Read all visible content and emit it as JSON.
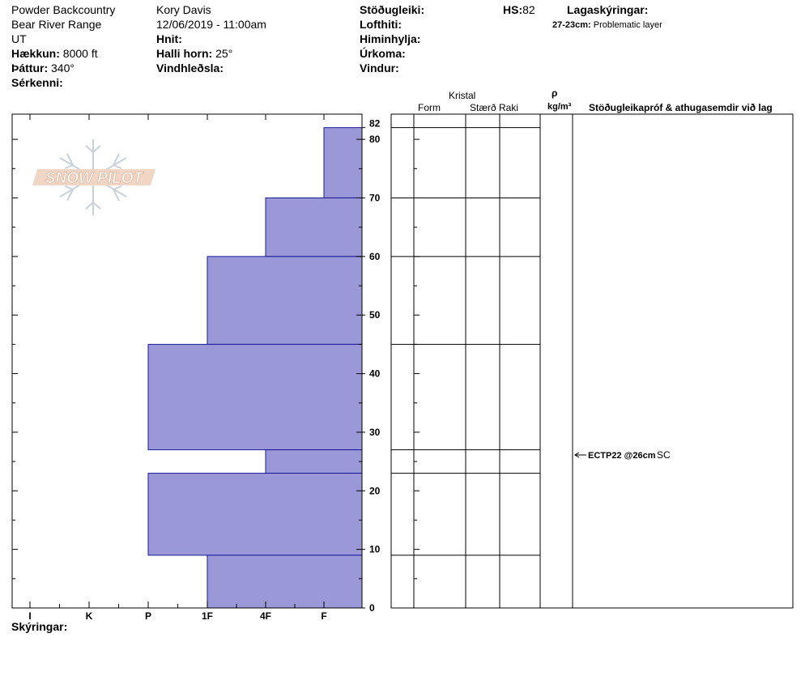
{
  "header": {
    "operation": "Powder Backcountry",
    "range": "Bear River Range",
    "state": "UT",
    "elevation_label": "Hækkun:",
    "elevation_value": "8000 ft",
    "aspect_label": "Þáttur:",
    "aspect_value": "340°",
    "features_label": "Sérkenni:",
    "observer": "Kory Davis",
    "datetime": "12/06/2019 - 11:00am",
    "coords_label": "Hnit:",
    "slope_label": "Halli horn:",
    "slope_value": "25°",
    "wind_loading_label": "Vindhleðsla:",
    "stability_label": "Stöðugleiki:",
    "airtemp_label": "Lofthiti:",
    "sky_label": "Himinhylja:",
    "precip_label": "Úrkoma:",
    "wind_label": "Vindur:",
    "hs_label": "HS:",
    "hs_value": "82",
    "layer_notes_label": "Lagaskýringar:",
    "layer_note_depth": "27-23cm:",
    "layer_note_text": "Problematic layer"
  },
  "logo": {
    "text": "SNOW PILOT"
  },
  "columns": {
    "crystal": "Kristal",
    "form": "Form",
    "size": "Stærð",
    "moisture": "Raki",
    "rho": "ρ",
    "density_unit": "kg/m³",
    "tests": "Stöðugleikapróf & athugasemdir við lag"
  },
  "test_result": {
    "label": "ECTP22 @26cm",
    "extra": "SC"
  },
  "footer": {
    "notes_label": "Skýringar:"
  },
  "chart_data": {
    "type": "bar",
    "orientation": "horizontal-profile",
    "title": "",
    "xlabel": "",
    "ylabel": "",
    "hardness_categories": [
      "I",
      "K",
      "P",
      "1F",
      "4F",
      "F"
    ],
    "height_ticks": [
      0,
      10,
      20,
      30,
      40,
      50,
      60,
      70,
      80,
      82
    ],
    "ylim": [
      0,
      82
    ],
    "layers": [
      {
        "bottom": 70,
        "top": 82,
        "hardness": "F"
      },
      {
        "bottom": 60,
        "top": 70,
        "hardness": "4F"
      },
      {
        "bottom": 45,
        "top": 60,
        "hardness": "1F"
      },
      {
        "bottom": 27,
        "top": 45,
        "hardness": "P"
      },
      {
        "bottom": 23,
        "top": 27,
        "hardness": "4F"
      },
      {
        "bottom": 9,
        "top": 23,
        "hardness": "P"
      },
      {
        "bottom": 0,
        "top": 9,
        "hardness": "1F"
      }
    ],
    "test_depth": 26,
    "colors": {
      "fill": "#9a98d6",
      "stroke": "#1a1a9a"
    }
  }
}
